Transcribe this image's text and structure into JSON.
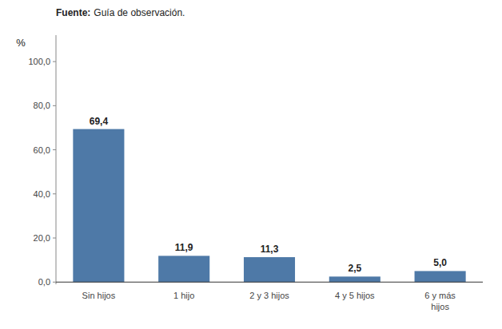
{
  "chart_data": {
    "type": "bar",
    "ylabel": "%",
    "annotations": [
      {
        "label": "Fuente:",
        "text": "Guía de observación."
      }
    ],
    "categories": [
      "Sin hijos",
      "1 hijo",
      "2 y 3 hijos",
      "4 y 5 hijos",
      "6 y más\nhijos"
    ],
    "values": [
      69.4,
      11.9,
      11.3,
      2.5,
      5.0
    ],
    "value_labels": [
      "69,4",
      "11,9",
      "11,3",
      "2,5",
      "5,0"
    ],
    "data_labels": true,
    "color": "#4e79a7",
    "ylim": [
      -1,
      112
    ],
    "yticks": [
      {
        "value": 0.0,
        "label": "0,0"
      },
      {
        "value": 20.0,
        "label": "20,0"
      },
      {
        "value": 40.0,
        "label": "40,0"
      },
      {
        "value": 60.0,
        "label": "60,0"
      },
      {
        "value": 80.0,
        "label": "80,0"
      },
      {
        "value": 100.0,
        "label": "100,0"
      }
    ],
    "grid": false
  }
}
